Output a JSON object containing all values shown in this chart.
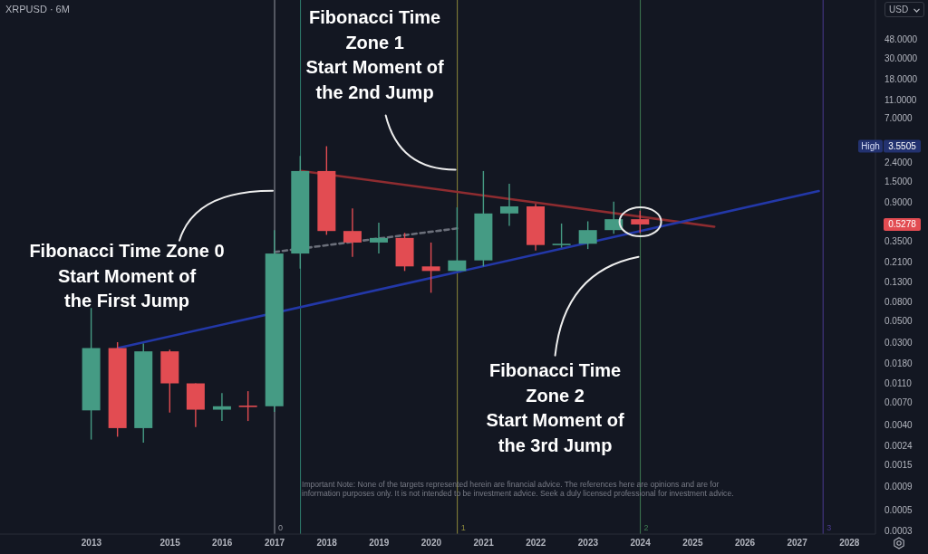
{
  "chart_data": {
    "type": "candlestick",
    "title": "XRPUSD · 6M",
    "ylabel": "USD",
    "x": [
      "2013-07",
      "2014-01",
      "2014-07",
      "2015-01",
      "2015-07",
      "2016-01",
      "2016-07",
      "2017-01",
      "2017-07",
      "2018-01",
      "2018-07",
      "2019-01",
      "2019-07",
      "2020-01",
      "2020-07",
      "2021-01",
      "2021-07",
      "2022-01",
      "2022-07",
      "2023-01",
      "2023-07",
      "2024-01"
    ],
    "ohlc": [
      [
        0.0057,
        0.069,
        0.0028,
        0.026
      ],
      [
        0.026,
        0.03,
        0.003,
        0.0037
      ],
      [
        0.0037,
        0.029,
        0.0026,
        0.024
      ],
      [
        0.024,
        0.025,
        0.0054,
        0.011
      ],
      [
        0.011,
        0.011,
        0.0038,
        0.0058
      ],
      [
        0.0058,
        0.0087,
        0.0044,
        0.0063
      ],
      [
        0.0064,
        0.0091,
        0.0044,
        0.0063
      ],
      [
        0.0063,
        0.46,
        0.0055,
        0.26
      ],
      [
        0.26,
        2.8,
        0.18,
        1.94
      ],
      [
        1.94,
        3.5505,
        0.41,
        0.45
      ],
      [
        0.45,
        0.78,
        0.24,
        0.34
      ],
      [
        0.34,
        0.55,
        0.26,
        0.38
      ],
      [
        0.38,
        0.43,
        0.17,
        0.19
      ],
      [
        0.19,
        0.34,
        0.1,
        0.17
      ],
      [
        0.17,
        0.8,
        0.17,
        0.22
      ],
      [
        0.22,
        1.94,
        0.19,
        0.69
      ],
      [
        0.69,
        1.42,
        0.51,
        0.82
      ],
      [
        0.82,
        0.87,
        0.28,
        0.32
      ],
      [
        0.32,
        0.54,
        0.3,
        0.33
      ],
      [
        0.33,
        0.57,
        0.29,
        0.46
      ],
      [
        0.46,
        0.92,
        0.42,
        0.6
      ],
      [
        0.6,
        0.74,
        0.43,
        0.5278
      ]
    ],
    "colors": [
      "#459b84",
      "#e24c52",
      "#459b84",
      "#e24c52",
      "#e24c52",
      "#459b84",
      "#e24c52",
      "#459b84",
      "#459b84",
      "#e24c52",
      "#e24c52",
      "#459b84",
      "#e24c52",
      "#e24c52",
      "#459b84",
      "#459b84",
      "#459b84",
      "#e24c52",
      "#459b84",
      "#459b84",
      "#459b84",
      "#e24c52"
    ],
    "series": [
      {
        "type": "line",
        "x": [
          "2017-07",
          "2025-06"
        ],
        "values": [
          1.95,
          0.5
        ],
        "color": "#8e2c30",
        "line_style": "solid"
      },
      {
        "type": "line",
        "x": [
          "2014-01",
          "2027-06"
        ],
        "values": [
          0.026,
          1.19
        ],
        "color": "#2338a8",
        "line_style": "solid"
      },
      {
        "type": "line",
        "x": [
          "2017-01",
          "2020-07"
        ],
        "values": [
          0.27,
          0.48
        ],
        "color": "#6b6f7a",
        "line_style": "dashed"
      }
    ],
    "log": true,
    "xlim": [
      "2011-10",
      "2028-07"
    ],
    "ylim": [
      0.00028,
      125
    ],
    "xticks": [
      {
        "value": "2013-07",
        "label": "2013"
      },
      "2015",
      "2016",
      "2017",
      "2018",
      "2019",
      "2020",
      "2021",
      "2022",
      "2023",
      "2024",
      "2025",
      "2026",
      "2027",
      "2028"
    ],
    "yticks": [
      {
        "value": 48,
        "label": "48.0000"
      },
      {
        "value": 30,
        "label": "30.0000"
      },
      {
        "value": 18,
        "label": "18.0000"
      },
      {
        "value": 11,
        "label": "11.0000"
      },
      {
        "value": 7,
        "label": "7.0000"
      },
      {
        "value": 2.4,
        "label": "2.4000"
      },
      {
        "value": 1.5,
        "label": "1.5000"
      },
      {
        "value": 0.9,
        "label": "0.9000"
      },
      {
        "value": 0.35,
        "label": "0.3500"
      },
      {
        "value": 0.21,
        "label": "0.2100"
      },
      {
        "value": 0.13,
        "label": "0.1300"
      },
      {
        "value": 0.08,
        "label": "0.0800"
      },
      {
        "value": 0.05,
        "label": "0.0500"
      },
      {
        "value": 0.03,
        "label": "0.0300"
      },
      {
        "value": 0.018,
        "label": "0.0180"
      },
      {
        "value": 0.011,
        "label": "0.0110"
      },
      {
        "value": 0.007,
        "label": "0.0070"
      },
      {
        "value": 0.004,
        "label": "0.0040"
      },
      {
        "value": 0.0024,
        "label": "0.0024"
      },
      {
        "value": 0.0015,
        "label": "0.0015"
      },
      {
        "value": 0.0009,
        "label": "0.0009"
      },
      {
        "value": 0.0005,
        "label": "0.0005"
      },
      {
        "value": 0.0003,
        "label": "0.0003"
      }
    ],
    "ref_lines": [
      {
        "axis": "x",
        "value": "2017-01",
        "label": "0",
        "color": "#9598a1"
      },
      {
        "axis": "x",
        "value": "2017-07",
        "color": "#2f7f6e"
      },
      {
        "axis": "x",
        "value": "2020-07",
        "label": "1",
        "color": "#8d8a3c"
      },
      {
        "axis": "x",
        "value": "2024-01",
        "label": "2",
        "color": "#3f7a52"
      },
      {
        "axis": "x",
        "value": "2027-07",
        "label": "3",
        "color": "#4a3a8e"
      }
    ],
    "annotations": [
      {
        "text": "Fibonacci Time Zone 0\nStart Moment of\nthe First Jump",
        "x": "2017-01",
        "y": 1.2
      },
      {
        "text": "Fibonacci Time\nZone 1\nStart Moment of\nthe 2nd Jump",
        "x": "2020-07",
        "y": 2.0
      },
      {
        "text": "Fibonacci Time\nZone 2\nStart Moment of\nthe 3rd Jump",
        "x": "2024-01",
        "y": 0.24
      },
      "Important Note: None of the targets represented herein are financial advice. The references here are opinions and are for\ninformation purposes only. It is not intended to be investment advice. Seek a duly licensed professional for investment advice.",
      "High",
      "3.5505",
      "0.5278"
    ]
  }
}
